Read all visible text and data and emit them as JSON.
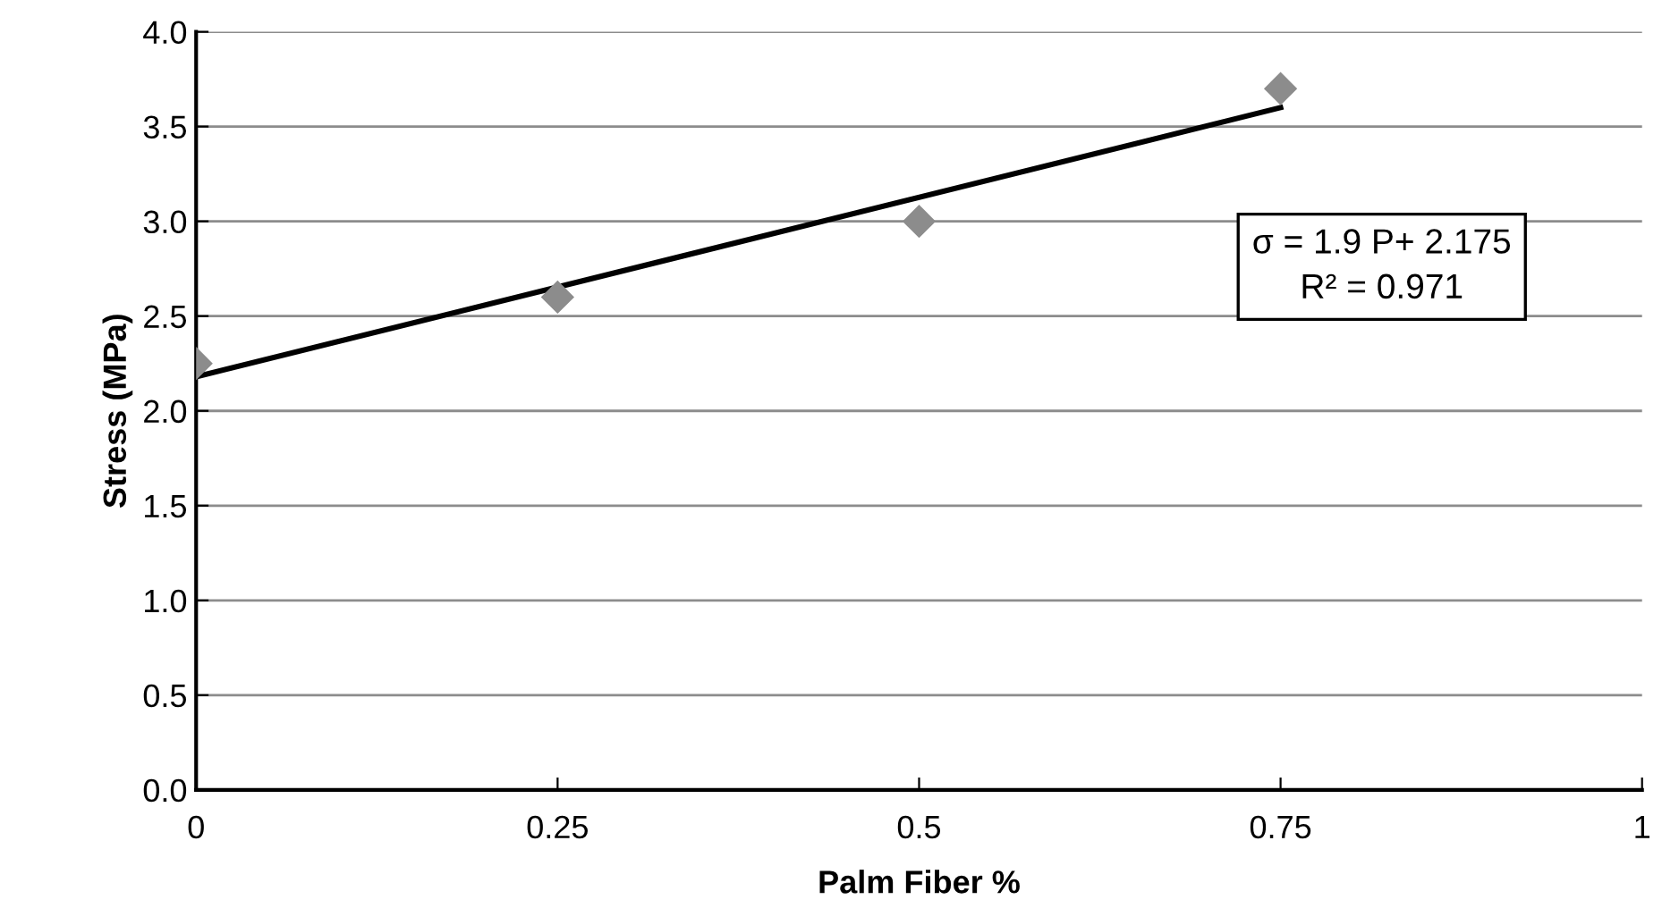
{
  "chart_data": {
    "type": "scatter",
    "xlabel": "Palm Fiber %",
    "ylabel": "Stress (MPa)",
    "series": [
      {
        "color": "#8c8c8c",
        "marker": "diamond",
        "x": [
          0,
          0.25,
          0.5,
          0.75
        ],
        "values": [
          2.25,
          2.6,
          3.0,
          3.7
        ]
      },
      {
        "type": "line",
        "color": "#000000",
        "marker": "none",
        "line_style": "solid",
        "x": [
          0,
          0.75
        ],
        "values": [
          2.18,
          3.6
        ]
      }
    ],
    "xlim": [
      0,
      1
    ],
    "xticks": [
      0,
      0.25,
      0.5,
      0.75,
      1
    ],
    "ylim": [
      0,
      4
    ],
    "yticks": [
      {
        "value": 0,
        "label": "0.0"
      },
      {
        "value": 0.5,
        "label": "0.5"
      },
      {
        "value": 1,
        "label": "1.0"
      },
      {
        "value": 1.5,
        "label": "1.5"
      },
      {
        "value": 2,
        "label": "2.0"
      },
      {
        "value": 2.5,
        "label": "2.5"
      },
      {
        "value": 3,
        "label": "3.0"
      },
      {
        "value": 3.5,
        "label": "3.5"
      },
      {
        "value": 4,
        "label": "4.0"
      }
    ],
    "grid": "y",
    "legend": false,
    "annotations": [
      "σ = 1.9 P+ 2.175\nR² = 0.971"
    ]
  }
}
